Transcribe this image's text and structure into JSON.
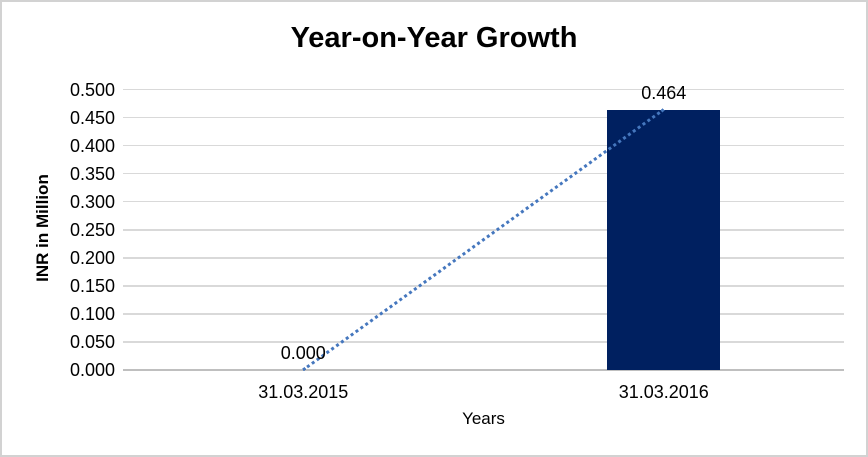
{
  "chart_data": {
    "type": "bar",
    "title": "Year-on-Year Growth",
    "xlabel": "Years",
    "ylabel": "INR in Million",
    "categories": [
      "31.03.2015",
      "31.03.2016"
    ],
    "values": [
      0.0,
      0.464
    ],
    "data_labels": [
      "0.000",
      "0.464"
    ],
    "ylim": [
      0.0,
      0.5
    ],
    "ytick_step": 0.05,
    "yticks": [
      "0.500",
      "0.450",
      "0.400",
      "0.350",
      "0.300",
      "0.250",
      "0.200",
      "0.150",
      "0.100",
      "0.050",
      "0.000"
    ],
    "grid": true,
    "legend": "none",
    "trendline": {
      "style": "dotted",
      "from_value": 0.0,
      "to_value": 0.464
    },
    "colors": {
      "bar": "#002060",
      "trendline": "#4577be",
      "gridline": "#d9d9d9",
      "axisline": "#bfbfbf",
      "text": "#000000",
      "frame_border": "#d2d2d2",
      "background": "#ffffff"
    }
  }
}
